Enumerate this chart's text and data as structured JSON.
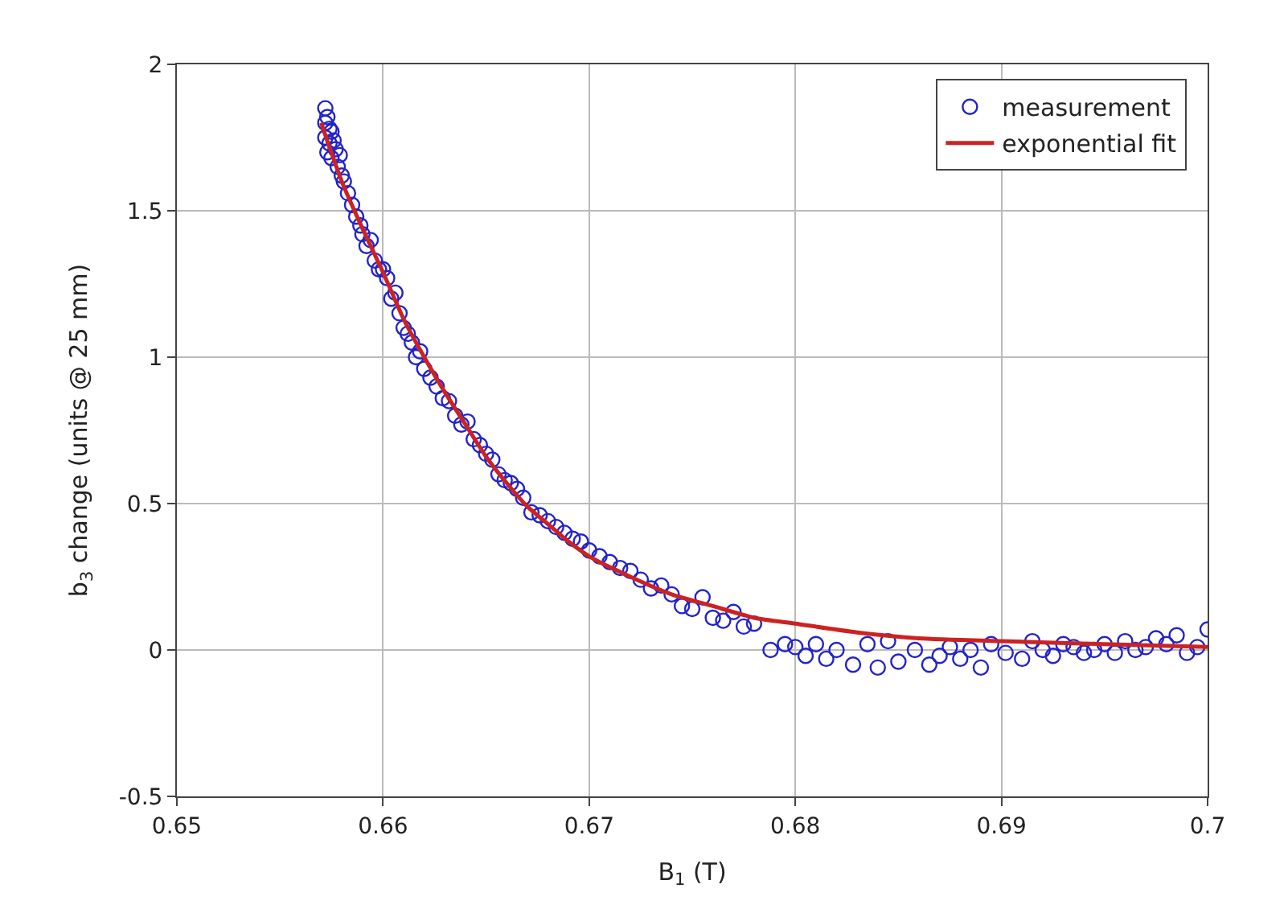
{
  "chart_data": {
    "type": "scatter",
    "xlabel": "B$_{1}$ (T)",
    "ylabel": "b$_{3}$ change (units @ 25 mm)",
    "xlim": [
      0.65,
      0.7
    ],
    "xticks": [
      0.65,
      0.66,
      0.67,
      0.68,
      0.69,
      0.7
    ],
    "ylim": [
      -0.5,
      2
    ],
    "yticks": [
      -0.5,
      0,
      0.5,
      1,
      1.5,
      2
    ],
    "grid": true,
    "legend": "top right",
    "series": [
      {
        "name": "measurement",
        "marker": "circle",
        "color": "#2222cc",
        "x": [
          0.6572,
          0.6572,
          0.6572,
          0.6573,
          0.6573,
          0.6574,
          0.6574,
          0.6575,
          0.6575,
          0.6576,
          0.6577,
          0.6578,
          0.6579,
          0.658,
          0.6581,
          0.6583,
          0.6585,
          0.6587,
          0.6589,
          0.659,
          0.6592,
          0.6594,
          0.6596,
          0.6598,
          0.66,
          0.6602,
          0.6604,
          0.6606,
          0.6608,
          0.661,
          0.6612,
          0.6614,
          0.6616,
          0.6618,
          0.662,
          0.6623,
          0.6626,
          0.6629,
          0.6632,
          0.6635,
          0.6638,
          0.6641,
          0.6644,
          0.6647,
          0.665,
          0.6653,
          0.6656,
          0.6659,
          0.6662,
          0.6665,
          0.6668,
          0.6672,
          0.6676,
          0.668,
          0.6684,
          0.6688,
          0.6692,
          0.6696,
          0.67,
          0.6705,
          0.671,
          0.6715,
          0.672,
          0.6725,
          0.673,
          0.6735,
          0.674,
          0.6745,
          0.675,
          0.6755,
          0.676,
          0.6765,
          0.677,
          0.6775,
          0.678,
          0.6788,
          0.6795,
          0.68,
          0.6805,
          0.681,
          0.6815,
          0.682,
          0.6828,
          0.6835,
          0.684,
          0.6845,
          0.685,
          0.6858,
          0.6865,
          0.687,
          0.6875,
          0.688,
          0.6885,
          0.689,
          0.6895,
          0.6902,
          0.691,
          0.6915,
          0.692,
          0.6925,
          0.693,
          0.6935,
          0.694,
          0.6945,
          0.695,
          0.6955,
          0.696,
          0.6965,
          0.697,
          0.6975,
          0.698,
          0.6985,
          0.699,
          0.6995,
          0.7
        ],
        "values": [
          1.85,
          1.8,
          1.75,
          1.82,
          1.7,
          1.78,
          1.73,
          1.77,
          1.68,
          1.74,
          1.71,
          1.65,
          1.69,
          1.62,
          1.6,
          1.56,
          1.52,
          1.48,
          1.45,
          1.42,
          1.38,
          1.4,
          1.33,
          1.3,
          1.3,
          1.27,
          1.2,
          1.22,
          1.15,
          1.1,
          1.08,
          1.05,
          1.0,
          1.02,
          0.96,
          0.93,
          0.9,
          0.86,
          0.85,
          0.8,
          0.77,
          0.78,
          0.72,
          0.7,
          0.67,
          0.65,
          0.6,
          0.58,
          0.57,
          0.55,
          0.52,
          0.47,
          0.46,
          0.44,
          0.42,
          0.4,
          0.38,
          0.37,
          0.34,
          0.32,
          0.3,
          0.28,
          0.27,
          0.24,
          0.21,
          0.22,
          0.19,
          0.15,
          0.14,
          0.18,
          0.11,
          0.1,
          0.13,
          0.08,
          0.09,
          0.0,
          0.02,
          0.01,
          -0.02,
          0.02,
          -0.03,
          0.0,
          -0.05,
          0.02,
          -0.06,
          0.03,
          -0.04,
          0.0,
          -0.05,
          -0.02,
          0.01,
          -0.03,
          0.0,
          -0.06,
          0.02,
          -0.01,
          -0.03,
          0.03,
          0.0,
          -0.02,
          0.02,
          0.01,
          -0.01,
          0.0,
          0.02,
          -0.01,
          0.03,
          0.0,
          0.01,
          0.04,
          0.02,
          0.05,
          -0.01,
          0.01,
          0.07
        ]
      },
      {
        "name": "exponential fit",
        "type": "line",
        "marker": "none",
        "line_style": "solid",
        "color": "#cc2222",
        "x": [
          0.657,
          0.658,
          0.659,
          0.66,
          0.661,
          0.662,
          0.663,
          0.664,
          0.665,
          0.666,
          0.667,
          0.668,
          0.669,
          0.67,
          0.672,
          0.674,
          0.676,
          0.678,
          0.68,
          0.683,
          0.686,
          0.69,
          0.695,
          0.7
        ],
        "values": [
          1.8,
          1.6,
          1.44,
          1.29,
          1.13,
          1.0,
          0.88,
          0.77,
          0.66,
          0.57,
          0.49,
          0.43,
          0.37,
          0.32,
          0.25,
          0.19,
          0.15,
          0.11,
          0.09,
          0.06,
          0.04,
          0.03,
          0.02,
          0.01
        ]
      }
    ]
  }
}
